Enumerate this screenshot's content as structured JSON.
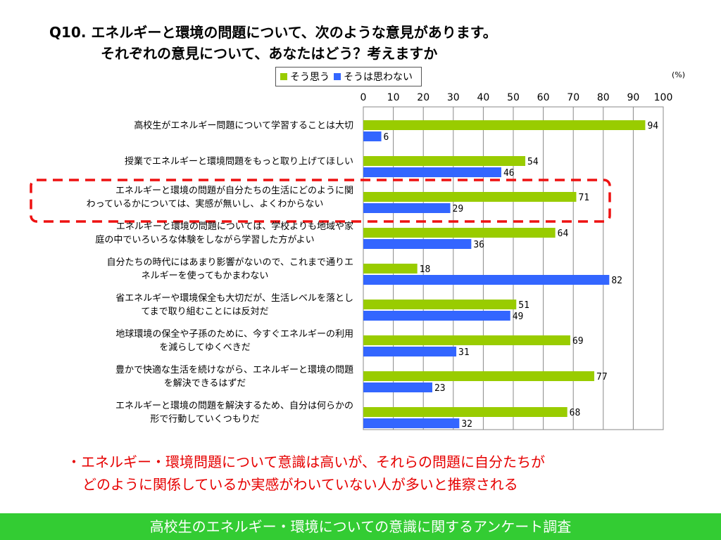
{
  "slide": {
    "title_line1": "Q10. エネルギーと環境の問題について、次のような意見があります。",
    "title_line2": "それぞれの意見について、あなたはどう？考えますか",
    "unit_label": "(%)",
    "conclusion_line1": "・エネルギー・環境問題について意識は高いが、それらの問題に自分たちが",
    "conclusion_line2": "どのように関係しているか実感がわいていない人が多いと推察される",
    "footer": "高校生のエネルギー・環境についての意識に関するアンケート調査"
  },
  "colors": {
    "agree": "#99cc00",
    "disagree": "#3366ff",
    "highlight": "#ee1111"
  },
  "chart_data": {
    "type": "bar",
    "orientation": "horizontal",
    "xlim": [
      0,
      100
    ],
    "ticks": [
      0,
      10,
      20,
      30,
      40,
      50,
      60,
      70,
      80,
      90,
      100
    ],
    "grid": true,
    "legend_position": "top",
    "highlighted_category": 2,
    "categories": [
      [
        "高校生がエネルギー問題について学習することは大切"
      ],
      [
        "授業でエネルギーと環境問題をもっと取り上げてほしい"
      ],
      [
        "エネルギーと環境の問題が自分たちの生活にどのように関",
        "わっているかについては、実感が無いし、よくわからない"
      ],
      [
        "エネルギーと環境の問題については、学校よりも地域や家",
        "庭の中でいろいろな体験をしながら学習した方がよい"
      ],
      [
        "自分たちの時代にはあまり影響がないので、これまで通りエ",
        "ネルギーを使ってもかまわない"
      ],
      [
        "省エネルギーや環境保全も大切だが、生活レベルを落とし",
        "てまで取り組むことには反対だ"
      ],
      [
        "地球環境の保全や子孫のために、今すぐエネルギーの利用",
        "を減らしてゆくべきだ"
      ],
      [
        "豊かで快適な生活を続けながら、エネルギーと環境の問題",
        "を解決できるはずだ"
      ],
      [
        "エネルギーと環境の問題を解決するため、自分は何らかの",
        "形で行動していくつもりだ"
      ]
    ],
    "series": [
      {
        "name": "そう思う",
        "values": [
          94,
          54,
          71,
          64,
          18,
          51,
          69,
          77,
          68
        ]
      },
      {
        "name": "そうは思わない",
        "values": [
          6,
          46,
          29,
          36,
          82,
          49,
          31,
          23,
          32
        ]
      }
    ]
  }
}
